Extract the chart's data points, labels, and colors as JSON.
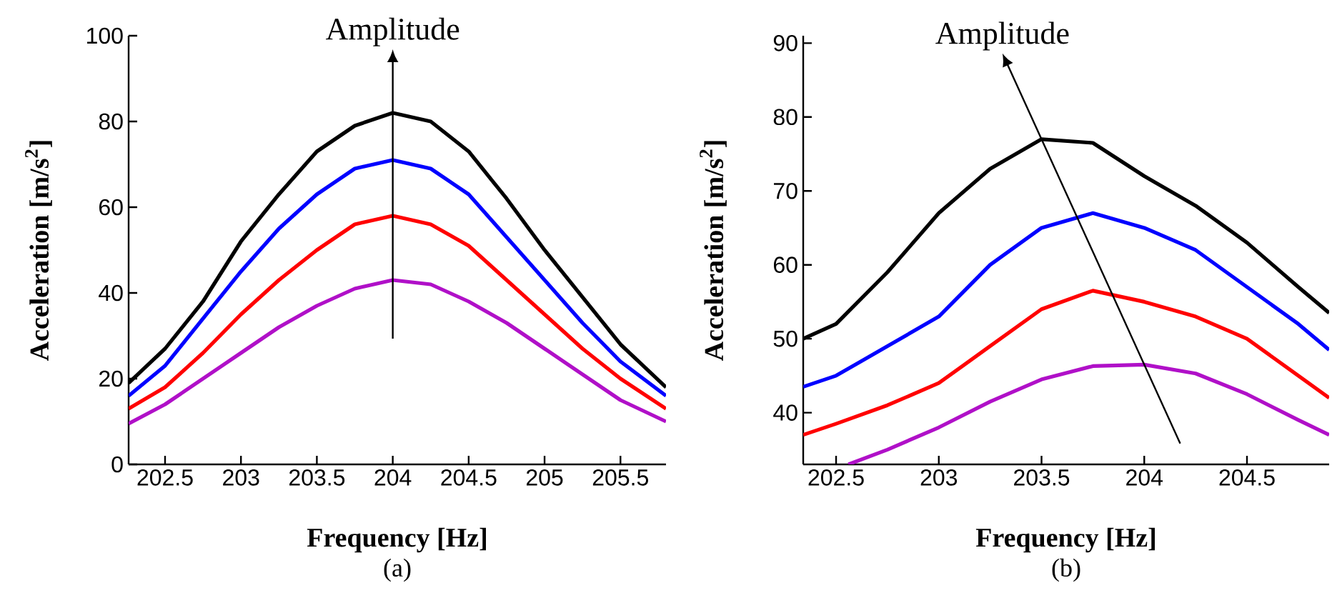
{
  "chart_data": [
    {
      "type": "line",
      "title": "(a)",
      "xlabel": "Frequency [Hz]",
      "ylabel": "Acceleration [m/s$^{2}$]",
      "xlim": [
        202.26,
        205.8
      ],
      "ylim": [
        0,
        100
      ],
      "xticks": [
        202.5,
        203,
        203.5,
        204,
        204.5,
        205,
        205.5
      ],
      "yticks": [
        0,
        20,
        40,
        60,
        80,
        100
      ],
      "x": [
        202.26,
        202.5,
        202.75,
        203,
        203.25,
        203.5,
        203.75,
        204,
        204.25,
        204.5,
        204.75,
        205,
        205.25,
        205.5,
        205.8
      ],
      "annotations": [
        "Amplitude"
      ],
      "series": [
        {
          "color": "#000000",
          "values": [
            19,
            27,
            38,
            52,
            63,
            73,
            79,
            82,
            80,
            73,
            62,
            50,
            39,
            28,
            18
          ]
        },
        {
          "color": "#0000ff",
          "values": [
            16,
            23,
            34,
            45,
            55,
            63,
            69,
            71,
            69,
            63,
            53,
            43,
            33,
            24,
            16
          ]
        },
        {
          "color": "#ff0000",
          "values": [
            13,
            18,
            26,
            35,
            43,
            50,
            56,
            58,
            56,
            51,
            43,
            35,
            27,
            20,
            13
          ]
        },
        {
          "color": "#b010c8",
          "values": [
            9.5,
            14,
            20,
            26,
            32,
            37,
            41,
            43,
            42,
            38,
            33,
            27,
            21,
            15,
            10
          ]
        }
      ]
    },
    {
      "type": "line",
      "title": "(b)",
      "xlabel": "Frequency [Hz]",
      "ylabel": "Acceleration [m/s$^{2}$]",
      "xlim": [
        202.34,
        204.9
      ],
      "ylim": [
        33,
        91
      ],
      "xticks": [
        202.5,
        203,
        203.5,
        204,
        204.5
      ],
      "yticks": [
        40,
        50,
        60,
        70,
        80,
        90
      ],
      "x": [
        202.34,
        202.5,
        202.75,
        203,
        203.25,
        203.5,
        203.75,
        204,
        204.25,
        204.5,
        204.75,
        204.9
      ],
      "annotations": [
        "Amplitude"
      ],
      "series": [
        {
          "color": "#000000",
          "values": [
            50,
            52,
            59,
            67,
            73,
            77,
            76.5,
            72,
            68,
            63,
            57,
            53.5
          ]
        },
        {
          "color": "#0000ff",
          "values": [
            43.5,
            45,
            49,
            53,
            60,
            65,
            67,
            65,
            62,
            57,
            52,
            48.5
          ]
        },
        {
          "color": "#ff0000",
          "values": [
            37,
            38.5,
            41,
            44,
            49,
            54,
            56.5,
            55,
            53,
            50,
            45,
            42
          ]
        },
        {
          "color": "#b010c8",
          "x": [
            202.56,
            202.75,
            203,
            203.25,
            203.5,
            203.75,
            204,
            204.25,
            204.5,
            204.75,
            204.9
          ],
          "values": [
            33,
            35,
            38,
            41.5,
            44.5,
            46.3,
            46.5,
            45.3,
            42.5,
            39,
            37
          ]
        }
      ]
    }
  ]
}
